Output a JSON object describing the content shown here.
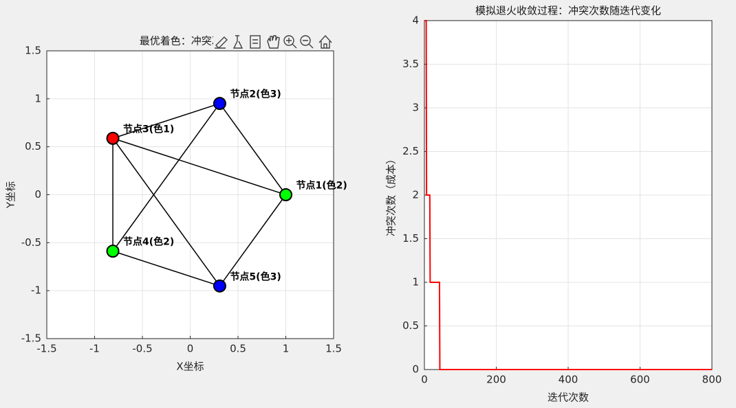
{
  "chart_data": [
    {
      "type": "network",
      "title": "最优着色：冲突次数=",
      "xlabel": "X坐标",
      "ylabel": "Y坐标",
      "xlim": [
        -1.5,
        1.5
      ],
      "xticks": [
        -1.5,
        -1,
        -0.5,
        0,
        0.5,
        1,
        1.5
      ],
      "ylim": [
        -1.5,
        1.5
      ],
      "yticks": [
        -1.5,
        -1,
        -0.5,
        0,
        0.5,
        1,
        1.5
      ],
      "grid": true,
      "nodes": [
        {
          "label": "节点1(色2)",
          "x": 1,
          "y": 0,
          "color": "#00ff00"
        },
        {
          "label": "节点2(色3)",
          "x": 0.309,
          "y": 0.951,
          "color": "#0000ff"
        },
        {
          "label": "节点3(色1)",
          "x": -0.809,
          "y": 0.588,
          "color": "#ff0000"
        },
        {
          "label": "节点4(色2)",
          "x": -0.809,
          "y": -0.588,
          "color": "#00ff00"
        },
        {
          "label": "节点5(色3)",
          "x": 0.309,
          "y": -0.951,
          "color": "#0000ff"
        }
      ],
      "edges": [
        [
          3,
          2
        ],
        [
          3,
          1
        ],
        [
          3,
          4
        ],
        [
          3,
          5
        ],
        [
          2,
          1
        ],
        [
          2,
          4
        ],
        [
          1,
          5
        ],
        [
          4,
          5
        ]
      ]
    },
    {
      "type": "line",
      "title": "模拟退火收敛过程：冲突次数随迭代变化",
      "xlabel": "迭代次数",
      "ylabel": "冲突次数（成本）",
      "xlim": [
        0,
        800
      ],
      "xticks": [
        0,
        200,
        400,
        600,
        800
      ],
      "ylim": [
        0,
        4
      ],
      "yticks": [
        0,
        0.5,
        1,
        1.5,
        2,
        2.5,
        3,
        3.5,
        4
      ],
      "grid": true,
      "color": "#ff0000",
      "x": [
        1,
        5,
        6,
        15,
        16,
        42,
        43,
        800
      ],
      "values": [
        4,
        4,
        2,
        2,
        1,
        1,
        0,
        0
      ]
    }
  ]
}
